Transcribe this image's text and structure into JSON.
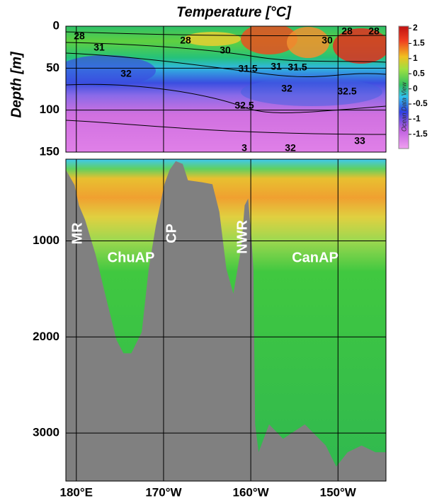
{
  "chart_data": {
    "type": "section",
    "title": "Temperature [°C]",
    "ylabel": "Depth [m]",
    "xlim": [
      178.8,
      215.5
    ],
    "xticks": [
      {
        "value": 180,
        "label": "180°E"
      },
      {
        "value": 190,
        "label": "170°W"
      },
      {
        "value": 200,
        "label": "160°W"
      },
      {
        "value": 210,
        "label": "150°W"
      }
    ],
    "grid": true,
    "panels": [
      {
        "ylim": [
          0,
          150
        ],
        "yticks": [
          0,
          50,
          100,
          150
        ]
      },
      {
        "ylim": [
          150,
          3500
        ],
        "yticks": [
          1000,
          2000,
          3000
        ]
      }
    ],
    "colorbar": {
      "lim": [
        -1.97,
        2.07
      ],
      "ticks": [
        2,
        1.5,
        1,
        0.5,
        0,
        -0.5,
        -1,
        -1.5
      ],
      "label": "Ocean Data View"
    },
    "contour_labels": [
      "28",
      "31",
      "28",
      "30",
      "31.5",
      "31",
      "31.5",
      "30",
      "28",
      "28",
      "32",
      "32",
      "32.5",
      "32.5",
      "33",
      "3",
      "32"
    ],
    "annotations": [
      "MR",
      "ChuAP",
      "CP",
      "NWR",
      "CanAP"
    ],
    "bathymetry": {
      "color": "#808080",
      "x": [
        178.8,
        179.8,
        180.3,
        181.0,
        182.2,
        183.4,
        184.6,
        185.4,
        186.3,
        187.5,
        188.3,
        189.1,
        190.1,
        190.7,
        191.4,
        192.2,
        192.8,
        194.4,
        195.6,
        196.4,
        197.2,
        198.0,
        198.9,
        199.3,
        199.7,
        200.1,
        200.3,
        200.5,
        200.9,
        202.1,
        203.7,
        206.2,
        208.6,
        209.8,
        211.1,
        212.7,
        214.3,
        215.5
      ],
      "depth": [
        260,
        420,
        630,
        780,
        1140,
        1590,
        2030,
        2170,
        2170,
        1950,
        1290,
        850,
        410,
        260,
        170,
        200,
        370,
        390,
        410,
        700,
        1290,
        1550,
        1070,
        630,
        560,
        1000,
        1290,
        2910,
        3200,
        2910,
        3060,
        2910,
        3130,
        3350,
        3200,
        3130,
        3200,
        3200
      ]
    }
  }
}
